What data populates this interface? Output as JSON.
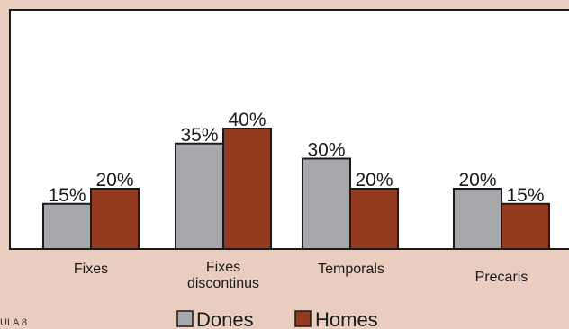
{
  "chart_data": {
    "type": "bar",
    "categories": [
      "Fixes",
      "Fixes\ndiscontinus",
      "Temporals",
      "Precaris"
    ],
    "series": [
      {
        "name": "Dones",
        "values": [
          15,
          35,
          30,
          20
        ],
        "labels": [
          "15%",
          "35%",
          "30%",
          "20%"
        ],
        "color": "#a7a8ab"
      },
      {
        "name": "Homes",
        "values": [
          20,
          40,
          20,
          15
        ],
        "labels": [
          "20%",
          "40%",
          "20%",
          "15%"
        ],
        "color": "#963a1f"
      }
    ],
    "ylim": [
      0,
      100
    ],
    "grid": false,
    "legend": "bottom-center"
  },
  "corner_text": "ULA 8",
  "colors": {
    "page_background": "#e9cdbf",
    "plot_background": "#ffffff",
    "axis": "#1a1a1a"
  }
}
